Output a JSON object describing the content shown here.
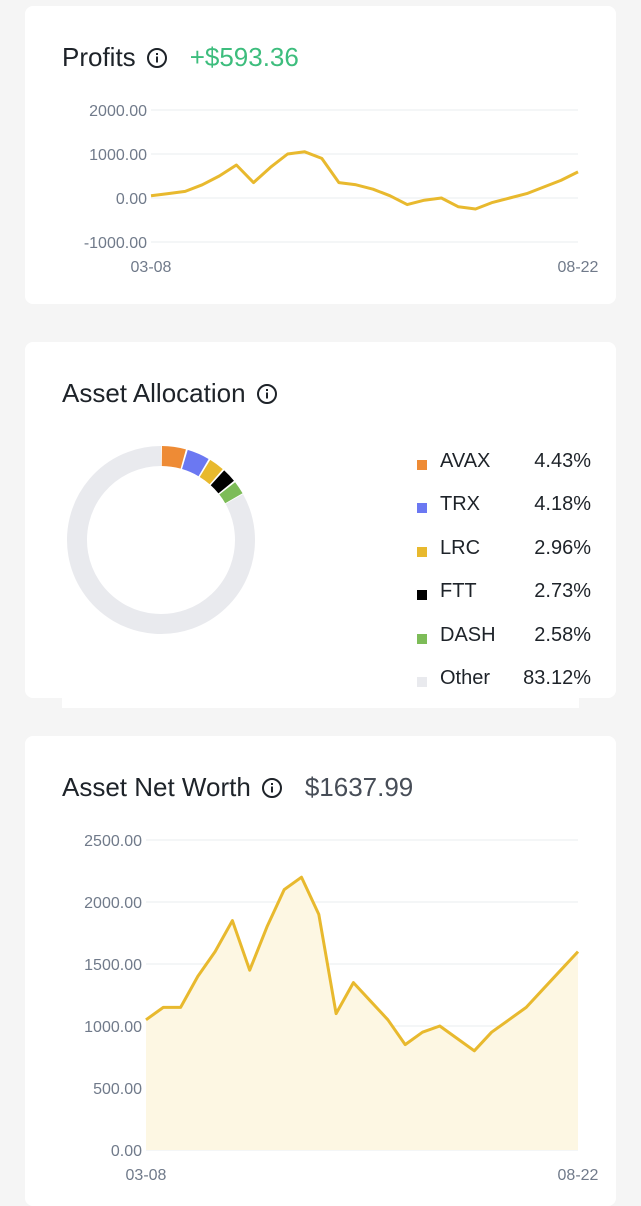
{
  "colors": {
    "line": "#e8b92e",
    "area_fill": "#fdf7e3",
    "grid": "#eaecef",
    "axis_text": "#707a8a",
    "positive": "#3dbd7d",
    "ring_bg": "#e9eaee"
  },
  "profits": {
    "title": "Profits",
    "info_icon": "info-icon",
    "value": "+$593.36"
  },
  "allocation": {
    "title": "Asset Allocation",
    "info_icon": "info-icon",
    "items": [
      {
        "name": "AVAX",
        "pct": "4.43%",
        "value": 4.43,
        "color": "#ee8b35"
      },
      {
        "name": "TRX",
        "pct": "4.18%",
        "value": 4.18,
        "color": "#6b78f2"
      },
      {
        "name": "LRC",
        "pct": "2.96%",
        "value": 2.96,
        "color": "#e8b92e"
      },
      {
        "name": "FTT",
        "pct": "2.73%",
        "value": 2.73,
        "color": "#000000"
      },
      {
        "name": "DASH",
        "pct": "2.58%",
        "value": 2.58,
        "color": "#7dbc58"
      },
      {
        "name": "Other",
        "pct": "83.12%",
        "value": 83.12,
        "color": "#e9eaee"
      }
    ]
  },
  "networth": {
    "title": "Asset Net Worth",
    "info_icon": "info-icon",
    "value": "$1637.99"
  },
  "chart_data": [
    {
      "type": "line",
      "title": "Profits",
      "x_ticks": [
        "03-08",
        "08-22"
      ],
      "y_ticks": [
        "2000.00",
        "1000.00",
        "0.00",
        "-1000.00"
      ],
      "ylim": [
        -1000,
        2000
      ],
      "grid": true,
      "x": [
        "03-08",
        "03-16",
        "03-24",
        "04-01",
        "04-09",
        "04-13",
        "04-19",
        "04-26",
        "05-03",
        "05-06",
        "05-09",
        "05-11",
        "05-17",
        "05-25",
        "06-02",
        "06-10",
        "06-18",
        "06-26",
        "07-04",
        "07-06",
        "07-12",
        "07-20",
        "07-28",
        "08-05",
        "08-13",
        "08-22"
      ],
      "values": [
        50,
        100,
        150,
        300,
        500,
        750,
        350,
        700,
        1000,
        1050,
        900,
        350,
        300,
        200,
        50,
        -150,
        -50,
        0,
        -200,
        -250,
        -100,
        0,
        100,
        250,
        400,
        593
      ]
    },
    {
      "type": "area",
      "title": "Asset Net Worth",
      "x_ticks": [
        "03-08",
        "08-22"
      ],
      "y_ticks": [
        "2500.00",
        "2000.00",
        "1500.00",
        "1000.00",
        "500.00",
        "0.00"
      ],
      "ylim": [
        0,
        2500
      ],
      "grid": true,
      "x": [
        "03-08",
        "03-16",
        "03-24",
        "04-01",
        "04-09",
        "04-13",
        "04-19",
        "04-26",
        "05-03",
        "05-06",
        "05-09",
        "05-11",
        "05-17",
        "05-25",
        "06-02",
        "06-10",
        "06-18",
        "06-26",
        "07-04",
        "07-06",
        "07-12",
        "07-20",
        "07-28",
        "08-05",
        "08-13",
        "08-22"
      ],
      "values": [
        1050,
        1150,
        1150,
        1400,
        1600,
        1850,
        1450,
        1800,
        2100,
        2200,
        1900,
        1100,
        1350,
        1200,
        1050,
        850,
        950,
        1000,
        900,
        800,
        950,
        1050,
        1150,
        1300,
        1450,
        1600
      ]
    }
  ]
}
